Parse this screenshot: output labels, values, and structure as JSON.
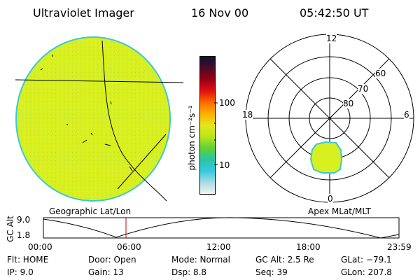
{
  "header": {
    "instrument": "Ultraviolet Imager",
    "date": "16 Nov 00",
    "time": "05:42:50 UT"
  },
  "colorbar": {
    "unit": "photon cm⁻²s⁻¹",
    "ticks": [
      "100",
      "10"
    ],
    "stops": [
      "#111133",
      "#4a0a2a",
      "#9a0016",
      "#e01010",
      "#ff6a00",
      "#ffb000",
      "#e6e61a",
      "#b8e61a",
      "#5fd035",
      "#28c6a8",
      "#35c8e0",
      "#a9dbe6",
      "#f2f2f2"
    ]
  },
  "left_panel": {
    "caption": "Geographic Lat/Lon",
    "disk_color": "#d8f020",
    "rim_color": "#3cc8d8"
  },
  "right_panel": {
    "caption": "Apex MLat/MLT",
    "mlt_labels": {
      "top": "12",
      "left": "18",
      "right": "6",
      "bottom": "0"
    },
    "mlat_labels": [
      "60",
      "70",
      "80"
    ],
    "blob_color": "#d8f020"
  },
  "timeline": {
    "y_label": "GC Alt",
    "y_ticks": [
      "9.0",
      "1.8"
    ],
    "x_ticks": [
      "00:00",
      "06:00",
      "12:00",
      "18:00",
      "23:59"
    ],
    "marker_color": "#cc0000"
  },
  "info": {
    "filter": "Flt: HOME",
    "ip": "IP:  9.0",
    "door": "Door: Open",
    "gain": "Gain: 13",
    "mode": "Mode: Normal",
    "dsp": "Dsp:    8.8",
    "gc_alt": "GC Alt: 2.5 Re",
    "seq": "Seq: 39",
    "glat": "GLat: −79.1",
    "glon": "GLon: 207.8"
  }
}
